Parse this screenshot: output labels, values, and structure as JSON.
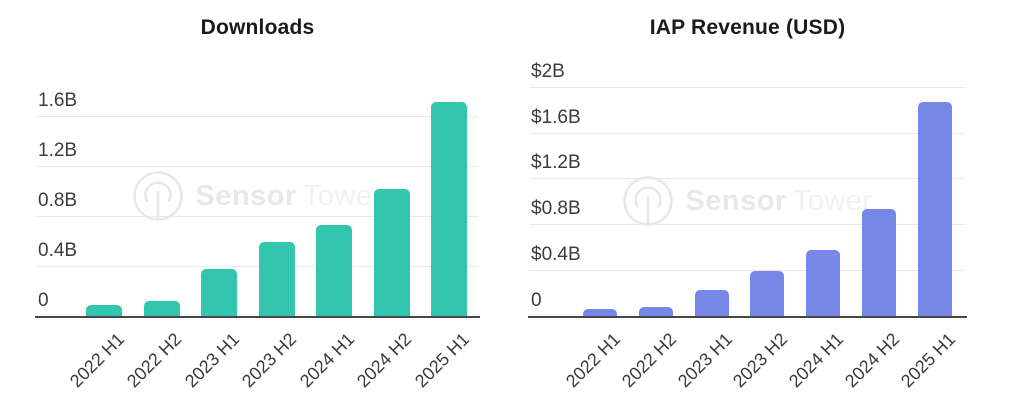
{
  "colors": {
    "downloads_bar": "#31c6ad",
    "revenue_bar": "#7687e8",
    "axis_line": "#474747",
    "gridline": "#e8e8e8",
    "title_text": "#1b1b1b",
    "tick_text": "#3c3c3c",
    "watermark_gray": "#e8e8e8"
  },
  "watermark": {
    "logo": "sensor-tower-logo",
    "brand_bold": "Sensor",
    "brand_light": "Tower"
  },
  "chart_data": [
    {
      "type": "bar",
      "title": "Downloads",
      "categories": [
        "2022 H1",
        "2022 H2",
        "2023 H1",
        "2023 H2",
        "2024 H1",
        "2024 H2",
        "2025 H1"
      ],
      "values": [
        0.09,
        0.12,
        0.38,
        0.59,
        0.73,
        1.02,
        1.71
      ],
      "unit": "billions of downloads",
      "xlabel": "",
      "ylabel": "",
      "ytick_values": [
        0,
        0.4,
        0.8,
        1.2,
        1.6
      ],
      "ytick_labels": [
        "0",
        "0.4B",
        "0.8B",
        "1.2B",
        "1.6B"
      ],
      "ylim": [
        0,
        1.8
      ],
      "grid": true,
      "legend": false,
      "bar_color": "#31c6ad"
    },
    {
      "type": "bar",
      "title": "IAP Revenue (USD)",
      "categories": [
        "2022 H1",
        "2022 H2",
        "2023 H1",
        "2023 H2",
        "2024 H1",
        "2024 H2",
        "2025 H1"
      ],
      "values": [
        0.06,
        0.08,
        0.23,
        0.39,
        0.58,
        0.93,
        1.87
      ],
      "unit": "USD billions",
      "xlabel": "",
      "ylabel": "",
      "ytick_values": [
        0,
        0.4,
        0.8,
        1.2,
        1.6,
        2.0
      ],
      "ytick_labels": [
        "0",
        "$0.4B",
        "$0.8B",
        "$1.2B",
        "$1.6B",
        "$2B"
      ],
      "ylim": [
        0,
        2.05
      ],
      "grid": true,
      "legend": false,
      "bar_color": "#7687e8"
    }
  ]
}
